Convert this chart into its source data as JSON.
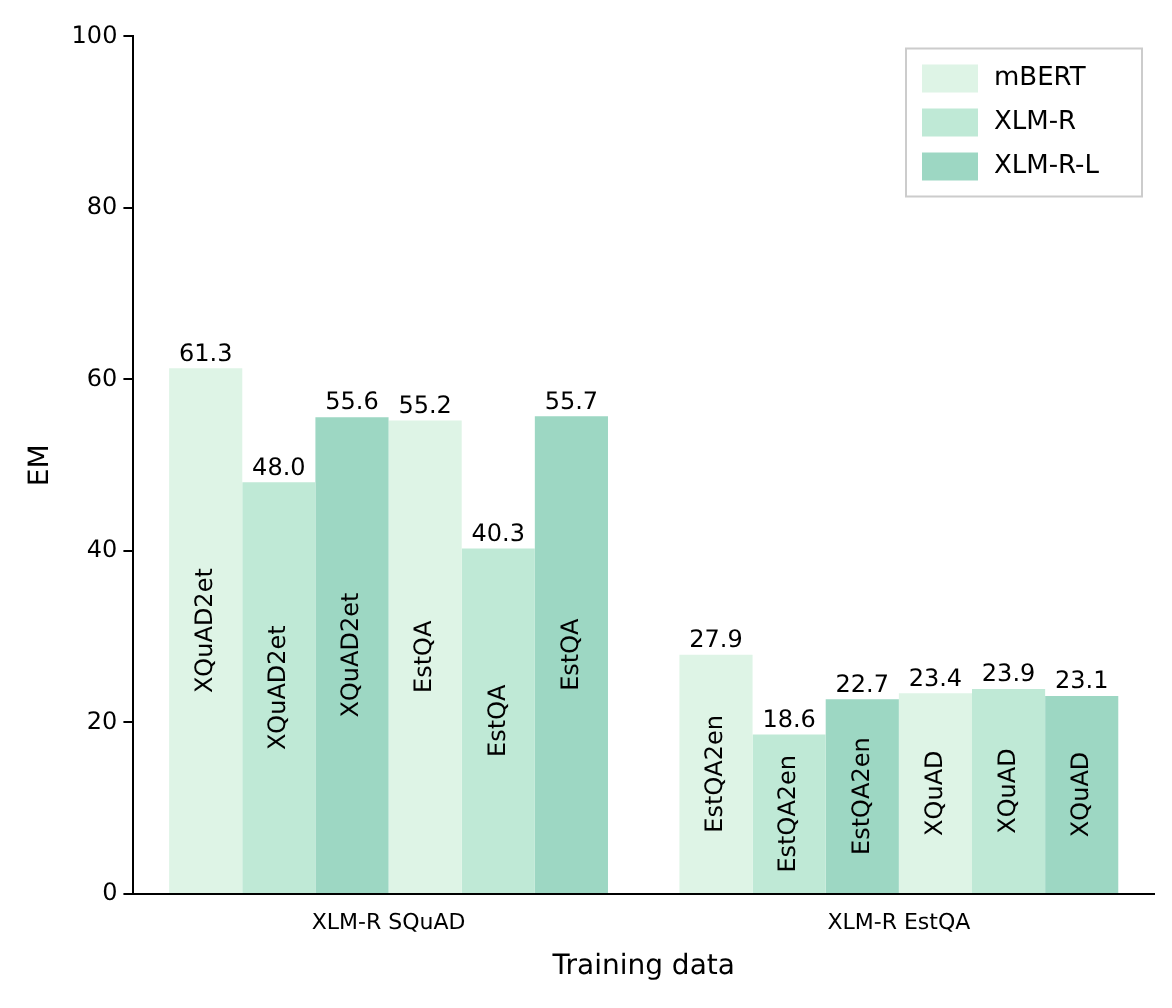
{
  "chart_data": {
    "type": "bar",
    "xlabel": "Training data",
    "ylabel": "EM",
    "categories": [
      "XLM-R SQuAD",
      "XLM-R EstQA"
    ],
    "series": [
      {
        "name": "mBERT",
        "color": "#def4e6",
        "values": [
          61.3,
          27.9
        ],
        "value_labels": [
          "61.3",
          "27.9"
        ]
      },
      {
        "name": "XLM-R",
        "color": "#bfe9d6",
        "values": [
          48.0,
          18.6
        ],
        "value_labels": [
          "48.0",
          "18.6"
        ]
      },
      {
        "name": "XLM-R-L",
        "color": "#9dd7c3",
        "values": [
          55.6,
          22.7
        ],
        "value_labels": [
          "55.6",
          "22.7"
        ]
      },
      {
        "color": "#def4e6",
        "values": [
          55.2,
          23.4
        ],
        "value_labels": [
          "55.2",
          "23.4"
        ]
      },
      {
        "color": "#bfe9d6",
        "values": [
          40.3,
          23.9
        ],
        "value_labels": [
          "40.3",
          "23.9"
        ]
      },
      {
        "color": "#9dd7c3",
        "values": [
          55.7,
          23.1
        ],
        "value_labels": [
          "55.7",
          "23.1"
        ]
      }
    ],
    "annotations": [
      "XQuAD2et",
      "XQuAD2et",
      "XQuAD2et",
      "EstQA",
      "EstQA",
      "EstQA",
      "EstQA2en",
      "EstQA2en",
      "EstQA2en",
      "XQuAD",
      "XQuAD",
      "XQuAD"
    ],
    "ylim": [
      0,
      100
    ],
    "yticks": [
      0,
      20,
      40,
      60,
      80,
      100
    ],
    "legend": "top right",
    "grid": false
  }
}
